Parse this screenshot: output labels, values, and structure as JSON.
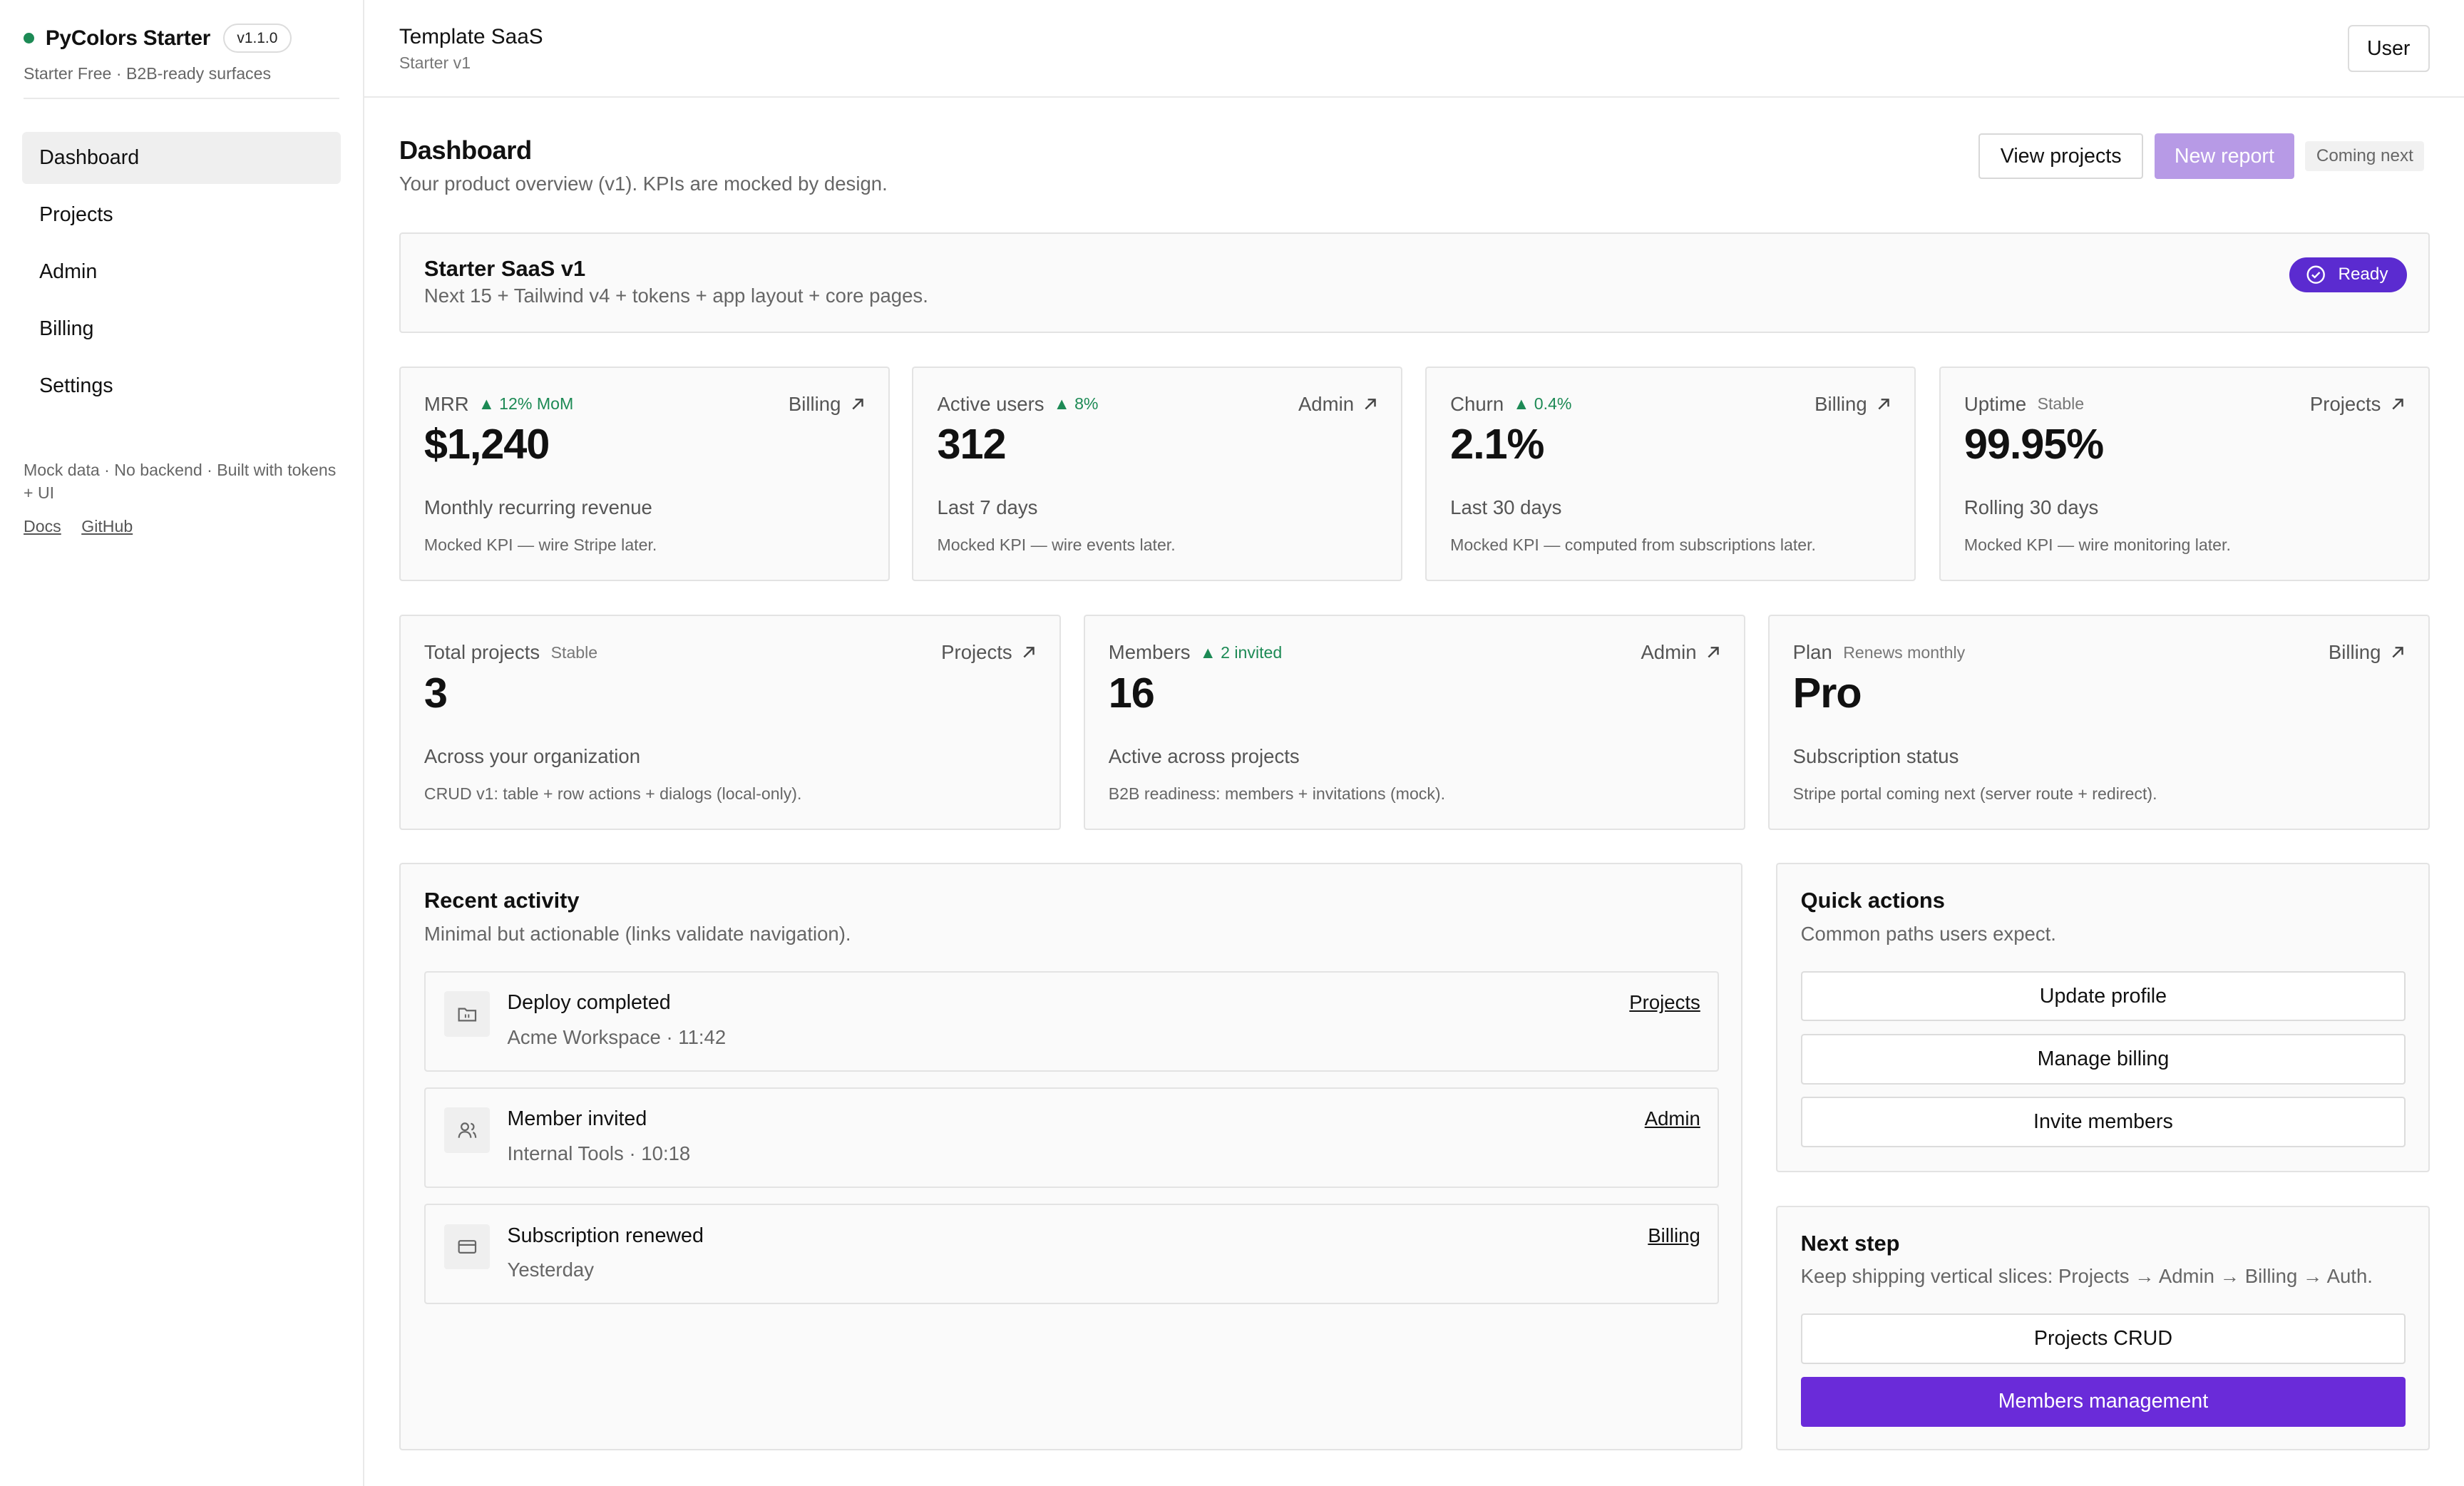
{
  "colors": {
    "accent": "#6a2bd9",
    "accent_light": "#b79ae6",
    "status_green": "#1d8a55",
    "ready_badge": "#5b2bd0"
  },
  "sidebar": {
    "brand": "PyColors Starter",
    "version": "v1.1.0",
    "subtitle": "Starter Free · B2B-ready surfaces",
    "items": [
      {
        "label": "Dashboard",
        "active": true
      },
      {
        "label": "Projects",
        "active": false
      },
      {
        "label": "Admin",
        "active": false
      },
      {
        "label": "Billing",
        "active": false
      },
      {
        "label": "Settings",
        "active": false
      }
    ],
    "footer": "Mock data · No backend · Built with tokens + UI",
    "links": [
      "Docs",
      "GitHub"
    ]
  },
  "topbar": {
    "title": "Template SaaS",
    "subtitle": "Starter v1",
    "user_button": "User"
  },
  "header": {
    "title": "Dashboard",
    "subtitle": "Your product overview (v1). KPIs are mocked by design.",
    "view_projects": "View projects",
    "new_report": "New report",
    "coming_next": "Coming next"
  },
  "banner": {
    "title": "Starter SaaS v1",
    "subtitle": "Next 15 + Tailwind v4 + tokens + app layout + core pages.",
    "badge": "Ready"
  },
  "kpis": [
    {
      "label": "MRR",
      "delta": "▲ 12% MoM",
      "tag": "",
      "link": "Billing",
      "value": "$1,240",
      "desc": "Monthly recurring revenue",
      "note": "Mocked KPI — wire Stripe later."
    },
    {
      "label": "Active users",
      "delta": "▲ 8%",
      "tag": "",
      "link": "Admin",
      "value": "312",
      "desc": "Last 7 days",
      "note": "Mocked KPI — wire events later."
    },
    {
      "label": "Churn",
      "delta": "▲ 0.4%",
      "tag": "",
      "link": "Billing",
      "value": "2.1%",
      "desc": "Last 30 days",
      "note": "Mocked KPI — computed from subscriptions later."
    },
    {
      "label": "Uptime",
      "delta": "",
      "tag": "Stable",
      "link": "Projects",
      "value": "99.95%",
      "desc": "Rolling 30 days",
      "note": "Mocked KPI — wire monitoring later."
    }
  ],
  "stats": [
    {
      "label": "Total projects",
      "delta": "",
      "tag": "Stable",
      "link": "Projects",
      "value": "3",
      "desc": "Across your organization",
      "note": "CRUD v1: table + row actions + dialogs (local-only)."
    },
    {
      "label": "Members",
      "delta": "▲ 2 invited",
      "tag": "",
      "link": "Admin",
      "value": "16",
      "desc": "Active across projects",
      "note": "B2B readiness: members + invitations (mock)."
    },
    {
      "label": "Plan",
      "delta": "",
      "tag": "Renews monthly",
      "link": "Billing",
      "value": "Pro",
      "desc": "Subscription status",
      "note": "Stripe portal coming next (server route + redirect)."
    }
  ],
  "activity": {
    "title": "Recent activity",
    "subtitle": "Minimal but actionable (links validate navigation).",
    "items": [
      {
        "icon": "folder-icon",
        "title": "Deploy completed",
        "meta": "Acme Workspace · 11:42",
        "link": "Projects"
      },
      {
        "icon": "users-icon",
        "title": "Member invited",
        "meta": "Internal Tools · 10:18",
        "link": "Admin"
      },
      {
        "icon": "credit-card-icon",
        "title": "Subscription renewed",
        "meta": "Yesterday",
        "link": "Billing"
      }
    ]
  },
  "quick_actions": {
    "title": "Quick actions",
    "subtitle": "Common paths users expect.",
    "buttons": [
      "Update profile",
      "Manage billing",
      "Invite members"
    ]
  },
  "next_step": {
    "title": "Next step",
    "subtitle": "Keep shipping vertical slices: Projects → Admin → Billing → Auth.",
    "buttons": [
      "Projects CRUD",
      "Members management"
    ]
  }
}
